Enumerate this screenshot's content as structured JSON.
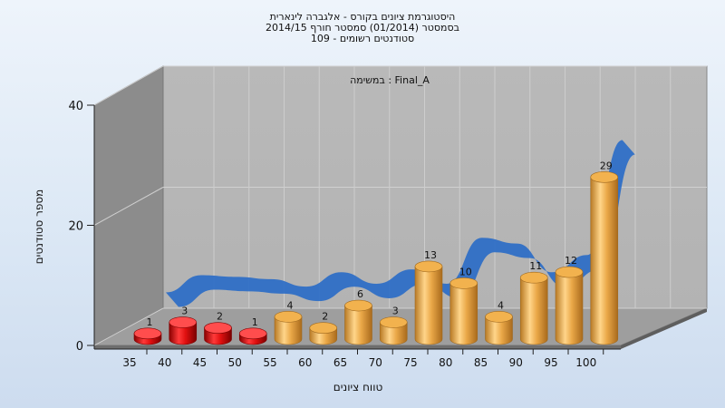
{
  "chart_data": {
    "type": "bar",
    "title_lines": [
      "היסטוגרמת ציונים בקורס - אלגברה לינארית",
      "בסמסטר  (01/2014)  סמסטר חורף 2014/15",
      "סטודנטים רשומים - 109"
    ],
    "subtitle": "במשימה : Final_A",
    "xlabel": "טווח ציונים",
    "ylabel": "מספר סטודנטים",
    "ylim": [
      0,
      40
    ],
    "yticks": [
      "0",
      "20",
      "40"
    ],
    "categories": [
      "35",
      "40",
      "45",
      "50",
      "55",
      "60",
      "65",
      "70",
      "75",
      "80",
      "85",
      "90",
      "95",
      "100"
    ],
    "values": [
      1,
      3,
      2,
      1,
      4,
      2,
      6,
      3,
      13,
      10,
      4,
      11,
      12,
      29
    ],
    "curve_values": [
      1.5,
      4.5,
      4.2,
      3.8,
      2.5,
      5,
      3,
      5.5,
      3,
      11,
      10,
      5,
      8,
      28
    ],
    "grid": true,
    "colors": {
      "failing": "#dd1111",
      "passing": "#e8a040",
      "curve": "#2f6fc6"
    },
    "failing_categories": [
      "35",
      "40",
      "45",
      "50"
    ]
  }
}
